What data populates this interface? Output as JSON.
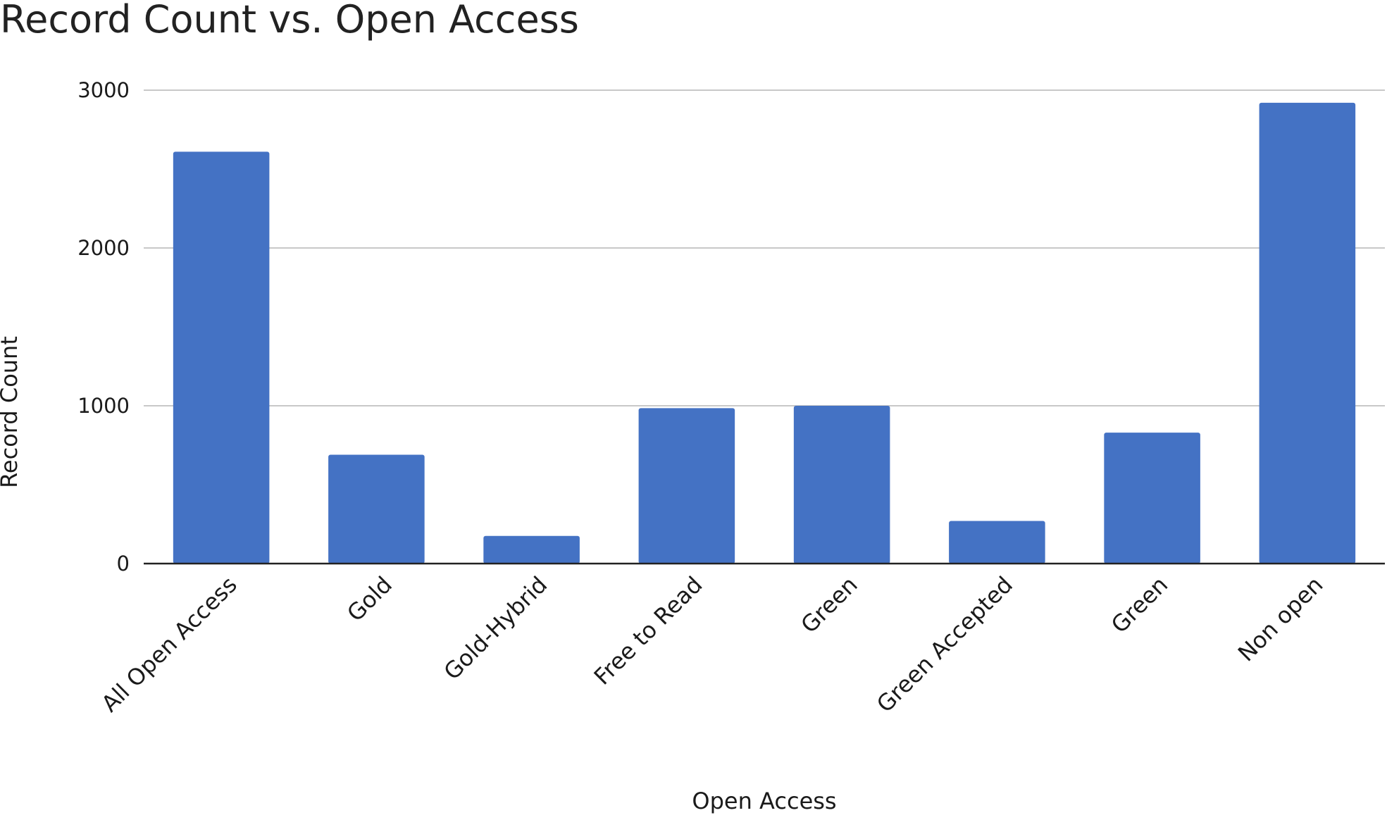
{
  "chart_data": {
    "type": "bar",
    "title": "Record Count vs. Open Access",
    "xlabel": "Open Access",
    "ylabel": "Record Count",
    "categories": [
      "All Open Access",
      "Gold",
      "Gold-Hybrid",
      "Free to Read",
      "Green",
      "Green Accepted",
      "Green",
      "Non open"
    ],
    "values": [
      2610,
      690,
      175,
      985,
      1000,
      270,
      830,
      2920
    ],
    "ylim": [
      0,
      3000
    ],
    "yticks": [
      0,
      1000,
      2000,
      3000
    ],
    "grid": true,
    "legend": "none",
    "colors": {
      "bar": "#4472C4",
      "grid": "#c8c8c8",
      "axis": "#222222"
    }
  }
}
